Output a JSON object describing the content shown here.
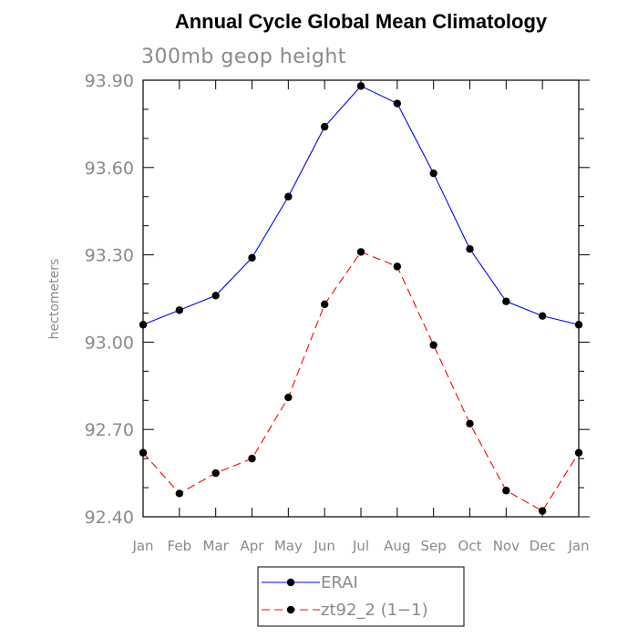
{
  "chart_data": {
    "type": "line",
    "title": "Annual Cycle Global Mean Climatology",
    "subtitle": "300mb geop height",
    "xlabel": "",
    "ylabel": "hectometers",
    "categories": [
      "Jan",
      "Feb",
      "Mar",
      "Apr",
      "May",
      "Jun",
      "Jul",
      "Aug",
      "Sep",
      "Oct",
      "Nov",
      "Dec",
      "Jan"
    ],
    "ylim": [
      92.4,
      93.9
    ],
    "yticks": [
      "92.40",
      "92.70",
      "93.00",
      "93.30",
      "93.60",
      "93.90"
    ],
    "grid": false,
    "legend_position": "bottom-center",
    "series": [
      {
        "name": "ERAI",
        "color": "#0000ff",
        "style": "solid",
        "marker": "filled-circle",
        "values": [
          93.06,
          93.11,
          93.16,
          93.29,
          93.5,
          93.74,
          93.88,
          93.82,
          93.58,
          93.32,
          93.14,
          93.09,
          93.06
        ]
      },
      {
        "name": "zt92_2 (1−1)",
        "color": "#ff0000",
        "style": "dashed",
        "marker": "filled-circle",
        "values": [
          92.62,
          92.48,
          92.55,
          92.6,
          92.81,
          93.13,
          93.31,
          93.26,
          92.99,
          92.72,
          92.49,
          92.42,
          92.62
        ]
      }
    ]
  }
}
